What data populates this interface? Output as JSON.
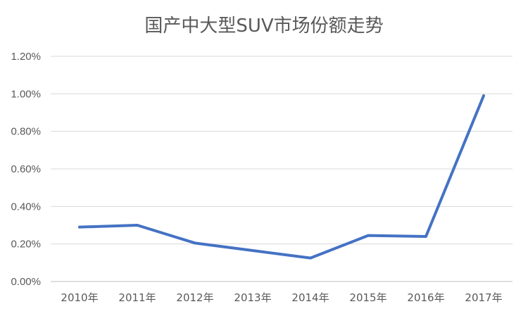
{
  "chart_data": {
    "type": "line",
    "title": "国产中大型SUV市场份额走势",
    "xlabel": "",
    "ylabel": "",
    "categories": [
      "2010年",
      "2011年",
      "2012年",
      "2013年",
      "2014年",
      "2015年",
      "2016年",
      "2017年"
    ],
    "series": [
      {
        "values": [
          0.29,
          0.3,
          0.205,
          0.165,
          0.125,
          0.245,
          0.24,
          0.99
        ],
        "color": "#4472C4"
      }
    ],
    "y_unit": "%",
    "ylim": [
      0,
      1.2
    ],
    "yticks": [
      "0.00%",
      "0.20%",
      "0.40%",
      "0.60%",
      "0.80%",
      "1.00%",
      "1.20%"
    ],
    "grid": true,
    "legend": "none"
  }
}
